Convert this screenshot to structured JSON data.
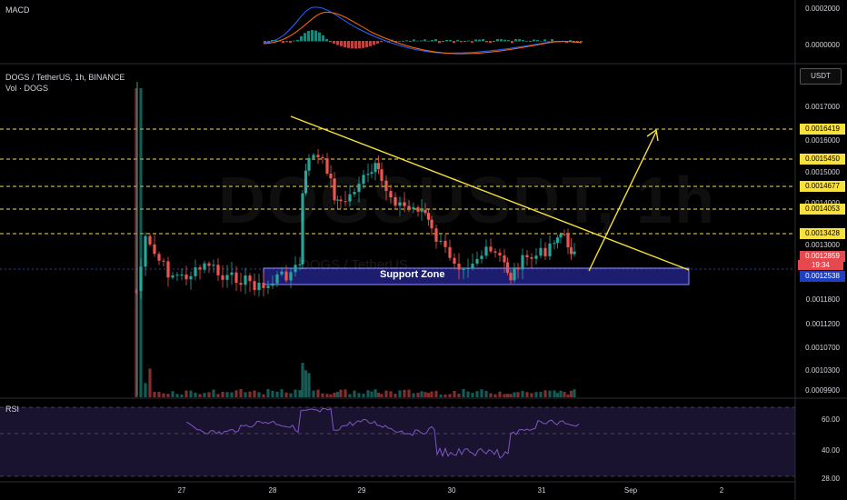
{
  "header": {
    "symbol_line": "DOGS / TetherUS, 1h, BINANCE",
    "vol_label": "Vol · DOGS",
    "macd_label": "MACD",
    "rsi_label": "RSI",
    "currency": "USDT"
  },
  "watermark": {
    "text": "DOGSUSDT, 1h",
    "sub": "DOGS / TetherUS"
  },
  "support_zone": {
    "label": "Support Zone",
    "low": 0.0012,
    "high": 0.0012538
  },
  "price_axis": {
    "ticks": [
      "0.0017000",
      "0.0016000",
      "0.0015000",
      "0.0014000",
      "0.0013000",
      "0.0011800",
      "0.0011200",
      "0.0010700",
      "0.0010300",
      "0.0009900"
    ]
  },
  "macd_axis": {
    "ticks": [
      "0.0002000",
      "0.0000000"
    ]
  },
  "rsi_axis": {
    "ticks": [
      "60.00",
      "40.00",
      "28.00"
    ]
  },
  "levels": {
    "lines": [
      "0.0016419",
      "0.0015450",
      "0.0014677",
      "0.0014053",
      "0.0013428"
    ],
    "current_price": "0.0012859",
    "countdown": "19:34",
    "marker": "0.0012538"
  },
  "x_axis": {
    "labels": [
      "27",
      "28",
      "29",
      "30",
      "31",
      "Sep",
      "2"
    ]
  },
  "colors": {
    "up": "#26a69a",
    "down": "#ef5350",
    "level": "#f7e13a",
    "zone": "#2a2aa0",
    "rsi": "#7e57c2"
  }
}
